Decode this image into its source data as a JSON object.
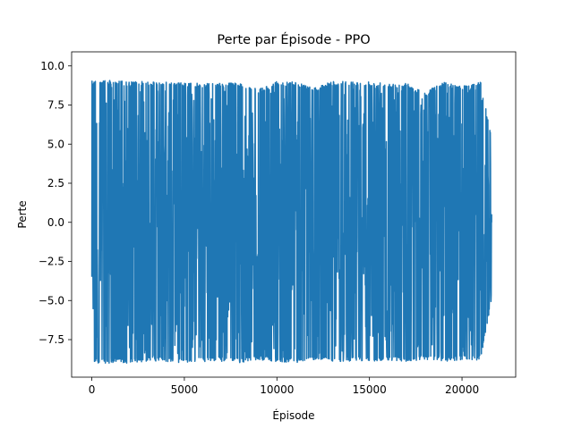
{
  "chart_data": {
    "type": "line",
    "title": "Perte par Épisode - PPO",
    "xlabel": "Épisode",
    "ylabel": "Perte",
    "xlim": [
      -1090,
      22900
    ],
    "ylim": [
      -9.9,
      10.9
    ],
    "xticks": [
      0,
      5000,
      10000,
      15000,
      20000
    ],
    "xtick_labels": [
      "0",
      "5000",
      "10000",
      "15000",
      "20000"
    ],
    "yticks": [
      -7.5,
      -5.0,
      -2.5,
      0.0,
      2.5,
      5.0,
      7.5,
      10.0
    ],
    "ytick_labels": [
      "−7.5",
      "−5.0",
      "−2.5",
      "0.0",
      "2.5",
      "5.0",
      "7.5",
      "10.0"
    ],
    "grid": false,
    "legend": "none",
    "series": [
      {
        "color": "#1f77b4",
        "x_start": 0,
        "x_end": 21600,
        "max": 9.1,
        "min": -9.0,
        "final": 0.0,
        "envelope_x": [
          0,
          1000,
          2000,
          3000,
          4000,
          5000,
          6000,
          7000,
          8000,
          9000,
          10000,
          11000,
          12000,
          13000,
          14000,
          15000,
          16000,
          17000,
          18000,
          19000,
          20000,
          21000,
          21600
        ],
        "envelope_upper": [
          9.1,
          9.1,
          9.0,
          9.0,
          9.0,
          8.9,
          8.9,
          8.9,
          8.9,
          8.5,
          9.0,
          9.0,
          8.6,
          9.0,
          9.0,
          9.0,
          8.9,
          8.9,
          8.3,
          9.0,
          8.7,
          9.0,
          5.4
        ],
        "envelope_lower": [
          -9.0,
          -9.0,
          -9.0,
          -8.9,
          -8.9,
          -9.0,
          -8.9,
          -8.9,
          -9.0,
          -8.8,
          -8.9,
          -9.0,
          -8.8,
          -8.9,
          -8.9,
          -8.9,
          -8.9,
          -8.9,
          -8.8,
          -8.9,
          -8.8,
          -8.8,
          -5.0
        ]
      }
    ]
  }
}
